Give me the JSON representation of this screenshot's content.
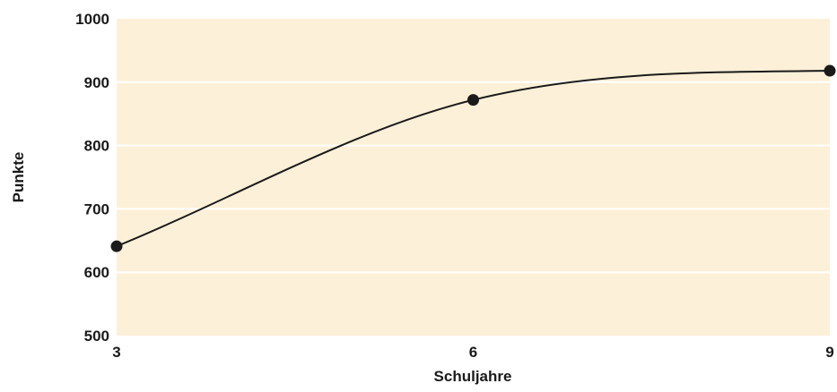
{
  "chart_data": {
    "type": "line",
    "title": "",
    "xlabel": "Schuljahre",
    "ylabel": "Punkte",
    "x": [
      3,
      6,
      9
    ],
    "series": [
      {
        "values": [
          641,
          872,
          918
        ]
      }
    ],
    "xlim": [
      3,
      9
    ],
    "ylim": [
      500,
      1000
    ],
    "xticks": [
      "3",
      "6",
      "9"
    ],
    "yticks": [
      "500",
      "600",
      "700",
      "800",
      "900",
      "1000"
    ],
    "grid": true,
    "smooth": true,
    "colors": {
      "plot_background": "#fdf0d8",
      "line": "#1a1a1a",
      "grid": "#ffffff"
    }
  }
}
